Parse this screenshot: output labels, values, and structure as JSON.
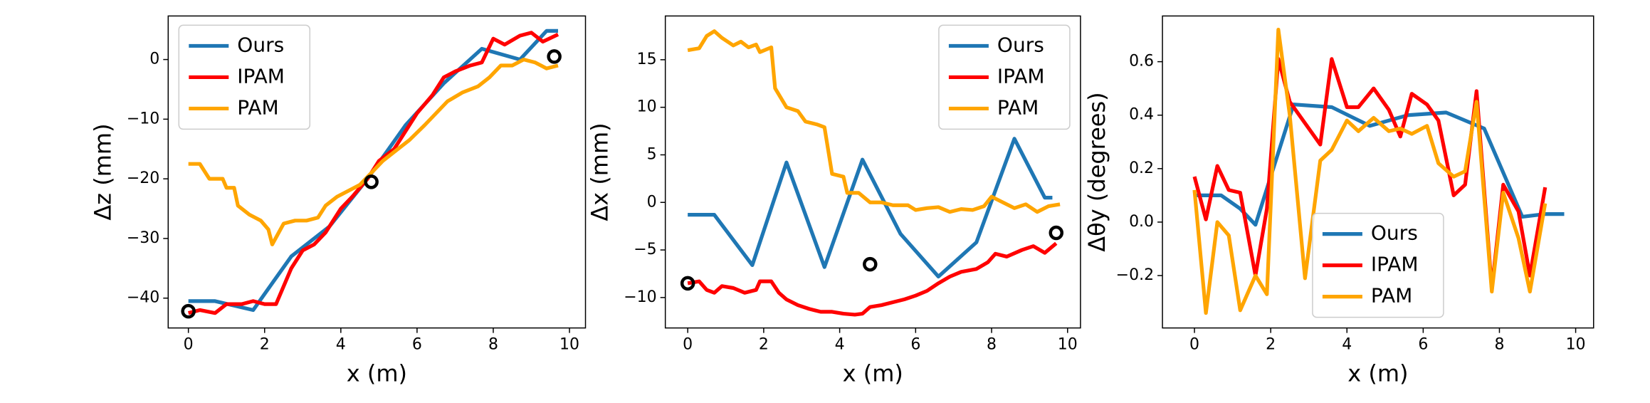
{
  "chart_data": [
    {
      "type": "line",
      "xlabel": "x (m)",
      "ylabel": "Δz (mm)",
      "legend": "upper left",
      "xlim": [
        -0.53,
        10.42
      ],
      "ylim": [
        -45,
        7.3
      ],
      "xticks": [
        0,
        2,
        4,
        6,
        8,
        10
      ],
      "yticks": [
        {
          "value": -40,
          "label": "−40"
        },
        {
          "value": -30,
          "label": "−30"
        },
        {
          "value": -20,
          "label": "−20"
        },
        {
          "value": -10,
          "label": "−10"
        },
        0
      ],
      "series": [
        {
          "name": "Ours",
          "color": "#1f77b4",
          "x": [
            0,
            0.7,
            1.7,
            2.7,
            3.7,
            4.7,
            5.7,
            6.7,
            7.7,
            8.7,
            9.4,
            9.7
          ],
          "values": [
            -40.5,
            -40.5,
            -42,
            -33,
            -28,
            -20,
            -11,
            -4,
            1.8,
            0,
            4.8,
            4.8
          ]
        },
        {
          "name": "IPAM",
          "color": "#ff0000",
          "x": [
            0,
            0.3,
            0.7,
            1.0,
            1.4,
            1.7,
            2.0,
            2.3,
            2.7,
            3.0,
            3.3,
            3.6,
            4.0,
            4.3,
            4.7,
            5.0,
            5.4,
            5.7,
            6.0,
            6.4,
            6.7,
            7.0,
            7.4,
            7.7,
            8.0,
            8.3,
            8.7,
            9.0,
            9.3,
            9.7
          ],
          "values": [
            -42.5,
            -42,
            -42.5,
            -41,
            -41,
            -40.5,
            -41,
            -41,
            -35,
            -32,
            -31,
            -29,
            -25,
            -23,
            -20,
            -17,
            -15,
            -12,
            -9,
            -6,
            -3,
            -2,
            -1,
            -0.5,
            3.5,
            2.5,
            4,
            4.5,
            3,
            4.2
          ]
        },
        {
          "name": "PAM",
          "color": "#ffa500",
          "x": [
            0,
            0.3,
            0.55,
            0.9,
            1.0,
            1.2,
            1.3,
            1.6,
            1.9,
            2.1,
            2.2,
            2.5,
            2.8,
            3.1,
            3.4,
            3.6,
            3.9,
            4.2,
            4.5,
            4.8,
            5.1,
            5.4,
            5.8,
            6.2,
            6.5,
            6.8,
            7.2,
            7.6,
            7.9,
            8.2,
            8.5,
            8.8,
            9.1,
            9.4,
            9.7
          ],
          "values": [
            -17.5,
            -17.5,
            -20,
            -20,
            -21.5,
            -21.5,
            -24.5,
            -26,
            -27,
            -28.5,
            -31,
            -27.5,
            -27,
            -27,
            -26.5,
            -24.5,
            -23,
            -22,
            -21,
            -19,
            -17,
            -15.5,
            -13.5,
            -11,
            -9,
            -7,
            -5.5,
            -4.5,
            -3,
            -1,
            -1,
            0,
            -0.5,
            -1.5,
            -1
          ]
        }
      ],
      "points": {
        "color": "#000000",
        "x": [
          0,
          4.8,
          9.6
        ],
        "values": [
          -42.2,
          -20.5,
          0.5
        ]
      }
    },
    {
      "type": "line",
      "xlabel": "x (m)",
      "ylabel": "Δx (mm)",
      "legend": "upper right",
      "xlim": [
        -0.59,
        10.34
      ],
      "ylim": [
        -13.2,
        19.6
      ],
      "xticks": [
        0,
        2,
        4,
        6,
        8,
        10
      ],
      "yticks": [
        {
          "value": -10,
          "label": "−10"
        },
        {
          "value": -5,
          "label": "−5"
        },
        0,
        5,
        10,
        15
      ],
      "series": [
        {
          "name": "Ours",
          "color": "#1f77b4",
          "x": [
            0,
            0.7,
            1.7,
            2.6,
            3.6,
            4.6,
            5.6,
            6.6,
            7.6,
            8.6,
            9.4,
            9.6
          ],
          "values": [
            -1.3,
            -1.3,
            -6.6,
            4.2,
            -6.8,
            4.5,
            -3.3,
            -7.8,
            -4.2,
            6.7,
            0.5,
            0.5
          ]
        },
        {
          "name": "IPAM",
          "color": "#ff0000",
          "x": [
            0,
            0.3,
            0.5,
            0.7,
            0.9,
            1.2,
            1.5,
            1.8,
            1.9,
            2.2,
            2.4,
            2.6,
            2.9,
            3.2,
            3.5,
            3.8,
            4.1,
            4.4,
            4.6,
            4.8,
            5.1,
            5.4,
            5.7,
            6.0,
            6.3,
            6.6,
            6.9,
            7.2,
            7.6,
            7.9,
            8.1,
            8.4,
            8.8,
            9.1,
            9.4,
            9.7
          ],
          "values": [
            -8.5,
            -8.3,
            -9.2,
            -9.5,
            -8.8,
            -9,
            -9.5,
            -9.2,
            -8.3,
            -8.3,
            -9.5,
            -10.2,
            -10.8,
            -11.2,
            -11.5,
            -11.5,
            -11.7,
            -11.8,
            -11.7,
            -11,
            -10.8,
            -10.5,
            -10.2,
            -9.8,
            -9.3,
            -8.5,
            -7.8,
            -7.3,
            -7,
            -6.3,
            -5.4,
            -5.7,
            -5,
            -4.6,
            -5.3,
            -4.3
          ]
        },
        {
          "name": "PAM",
          "color": "#ffa500",
          "x": [
            0,
            0.3,
            0.5,
            0.7,
            0.9,
            1.2,
            1.4,
            1.6,
            1.8,
            1.9,
            2.2,
            2.3,
            2.6,
            2.9,
            3.1,
            3.4,
            3.6,
            3.8,
            4.1,
            4.2,
            4.5,
            4.8,
            5.1,
            5.4,
            5.8,
            6.0,
            6.3,
            6.6,
            6.9,
            7.2,
            7.5,
            7.8,
            8.0,
            8.3,
            8.6,
            8.9,
            9.2,
            9.5,
            9.8
          ],
          "values": [
            16,
            16.2,
            17.5,
            18,
            17.3,
            16.5,
            16.9,
            16.3,
            16.6,
            15.8,
            16.3,
            12,
            10,
            9.6,
            8.5,
            8.2,
            7.9,
            3,
            2.7,
            1,
            1,
            0,
            0,
            -0.3,
            -0.3,
            -0.8,
            -0.6,
            -0.5,
            -1,
            -0.7,
            -0.8,
            -0.4,
            0.6,
            0,
            -0.6,
            -0.2,
            -1,
            -0.4,
            -0.2
          ]
        }
      ],
      "points": {
        "color": "#000000",
        "x": [
          0,
          4.8,
          9.7
        ],
        "values": [
          -8.5,
          -6.5,
          -3.2
        ]
      }
    },
    {
      "type": "line",
      "xlabel": "x (m)",
      "ylabel": "Δθy (degrees)",
      "legend": "lower center",
      "xlim": [
        -0.84,
        10.47
      ],
      "ylim": [
        -0.396,
        0.771
      ],
      "xticks": [
        0,
        2,
        4,
        6,
        8,
        10
      ],
      "yticks": [
        {
          "value": -0.2,
          "label": "−0.2"
        },
        {
          "value": 0,
          "label": "0.0"
        },
        0.2,
        0.4,
        0.6
      ],
      "series": [
        {
          "name": "Ours",
          "color": "#1f77b4",
          "x": [
            0,
            0.4,
            0.7,
            1.2,
            1.6,
            2.6,
            3.6,
            4.6,
            5.6,
            6.6,
            7.6,
            8.6,
            9.2,
            9.7
          ],
          "values": [
            0.1,
            0.1,
            0.1,
            0.05,
            -0.01,
            0.44,
            0.43,
            0.36,
            0.4,
            0.41,
            0.35,
            0.02,
            0.03,
            0.03
          ]
        },
        {
          "name": "IPAM",
          "color": "#ff0000",
          "x": [
            0,
            0.3,
            0.6,
            0.9,
            1.2,
            1.6,
            1.9,
            2.2,
            2.5,
            2.9,
            3.3,
            3.6,
            4.0,
            4.3,
            4.7,
            5.1,
            5.4,
            5.7,
            6.1,
            6.4,
            6.8,
            7.1,
            7.4,
            7.8,
            8.1,
            8.5,
            8.8,
            9.2
          ],
          "values": [
            0.17,
            0.01,
            0.21,
            0.12,
            0.11,
            -0.2,
            0.05,
            0.61,
            0.45,
            0.37,
            0.29,
            0.61,
            0.43,
            0.43,
            0.5,
            0.42,
            0.32,
            0.48,
            0.44,
            0.38,
            0.1,
            0.14,
            0.49,
            -0.25,
            0.14,
            0.04,
            -0.2,
            0.13
          ]
        },
        {
          "name": "PAM",
          "color": "#ffa500",
          "x": [
            0,
            0.3,
            0.6,
            0.9,
            1.2,
            1.6,
            1.9,
            2.2,
            2.5,
            2.9,
            3.3,
            3.6,
            4.0,
            4.3,
            4.7,
            5.1,
            5.4,
            5.7,
            6.1,
            6.4,
            6.8,
            7.1,
            7.4,
            7.8,
            8.1,
            8.5,
            8.8,
            9.2
          ],
          "values": [
            0.12,
            -0.34,
            0,
            -0.05,
            -0.33,
            -0.2,
            -0.27,
            0.72,
            0.4,
            -0.21,
            0.23,
            0.27,
            0.38,
            0.34,
            0.39,
            0.34,
            0.35,
            0.33,
            0.36,
            0.22,
            0.17,
            0.19,
            0.45,
            -0.26,
            0.11,
            -0.06,
            -0.26,
            0.07
          ]
        }
      ]
    }
  ]
}
